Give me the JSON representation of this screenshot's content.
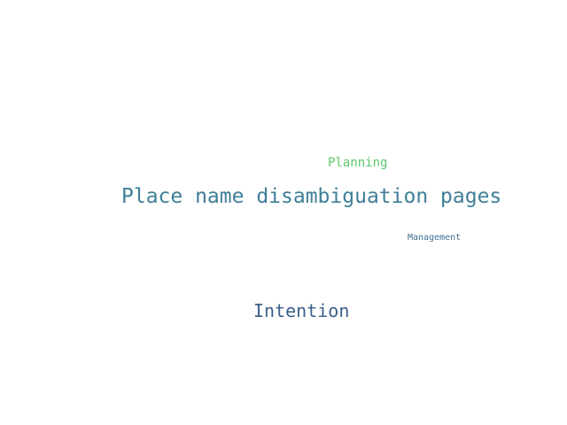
{
  "word_cloud": {
    "words": [
      {
        "text": "Place name disambiguation pages",
        "color": "#3f7f98"
      },
      {
        "text": "Intention",
        "color": "#3b5f8a"
      },
      {
        "text": "Planning",
        "color": "#5cc86a"
      },
      {
        "text": "Management",
        "color": "#3f6f93"
      }
    ]
  }
}
